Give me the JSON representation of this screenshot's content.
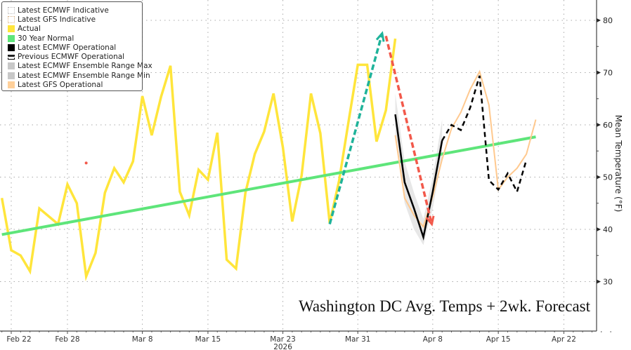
{
  "chart_data": {
    "type": "line",
    "title": "Washington DC Avg. Temps + 2wk. Forecast",
    "ylabel": "Mean Temperature (°F)",
    "xlabel": "2026",
    "ylim": [
      20,
      84
    ],
    "xlim": [
      "2026-02-21",
      "2026-04-27"
    ],
    "yticks": [
      30,
      40,
      50,
      60,
      70,
      80
    ],
    "xticks": [
      {
        "date": "2026-02-22",
        "label": "Feb 22"
      },
      {
        "date": "2026-02-28",
        "label": "Feb 28"
      },
      {
        "date": "2026-03-08",
        "label": "Mar 8"
      },
      {
        "date": "2026-03-15",
        "label": "Mar 15"
      },
      {
        "date": "2026-03-23",
        "label": "Mar 23"
      },
      {
        "date": "2026-03-31",
        "label": "Mar 31"
      },
      {
        "date": "2026-04-08",
        "label": "Apr 8"
      },
      {
        "date": "2026-04-15",
        "label": "Apr 15"
      },
      {
        "date": "2026-04-22",
        "label": "Apr 22"
      }
    ],
    "year_label": "2026",
    "grid": true,
    "legend_position": "top-left",
    "legend": [
      {
        "label": "Latest ECMWF Indicative",
        "color": "#bbbbbb",
        "style": "dotted-box"
      },
      {
        "label": "Latest GFS Indicative",
        "color": "#d9b48a",
        "style": "dotted-box"
      },
      {
        "label": "Actual",
        "color": "#ffe53b",
        "style": "solid"
      },
      {
        "label": "30 Year Normal",
        "color": "#5ee57a",
        "style": "solid"
      },
      {
        "label": "Latest ECMWF Operational",
        "color": "#000000",
        "style": "solid"
      },
      {
        "label": "Previous ECMWF Operational",
        "color": "#000000",
        "style": "dashed-box"
      },
      {
        "label": "Latest ECMWF Ensemble Range Max",
        "color": "#c8c8c8",
        "style": "solid"
      },
      {
        "label": "Latest ECMWF Ensemble Range Min",
        "color": "#c8c8c8",
        "style": "solid"
      },
      {
        "label": "Latest GFS Operational",
        "color": "#ffd09a",
        "style": "solid"
      }
    ],
    "series": [
      {
        "name": "Actual",
        "color": "#ffe53b",
        "start": "2026-02-21",
        "values": [
          46,
          36,
          35,
          32,
          44,
          42.5,
          41,
          48.6,
          45,
          31,
          35.5,
          47,
          51.7,
          49,
          53,
          65.5,
          58,
          65.4,
          71.3,
          47.2,
          42.7,
          51.4,
          49.5,
          58.5,
          34.2,
          32.5,
          47,
          54.4,
          58.7,
          66,
          55.7,
          41.5,
          50.3,
          66,
          58.4,
          41.2,
          49.3,
          60.5,
          71.5,
          71.5,
          56.8,
          62.8,
          76.5
        ]
      },
      {
        "name": "30 Year Normal",
        "color": "#5ee57a",
        "start": "2026-02-21",
        "end": "2026-04-19",
        "values_endpoints": [
          39,
          57.7
        ]
      },
      {
        "name": "Latest ECMWF Ensemble Range Max",
        "color": "#d8d8d8",
        "start": "2026-04-04",
        "values": [
          66,
          53,
          47,
          42,
          50,
          61
        ]
      },
      {
        "name": "Latest ECMWF Ensemble Range Min",
        "color": "#d8d8d8",
        "start": "2026-04-04",
        "values": [
          58,
          45,
          40,
          37,
          44,
          54
        ]
      },
      {
        "name": "Latest GFS Operational",
        "color": "#ffc98f",
        "start": "2026-04-04",
        "values": [
          58,
          46,
          42.7,
          40.5,
          46.3,
          53.4,
          59.3,
          62.4,
          66.8,
          70.2,
          63.8,
          47.6,
          50,
          51.7,
          54.4,
          61
        ]
      },
      {
        "name": "Latest ECMWF Operational",
        "color": "#000000",
        "start": "2026-04-04",
        "values": [
          62,
          49,
          44,
          38.5,
          47.2,
          57
        ]
      },
      {
        "name": "Previous ECMWF Operational",
        "color": "#000000",
        "start": "2026-04-09",
        "dashed": true,
        "values": [
          57,
          60,
          59,
          63.3,
          69.4,
          49.4,
          47.6,
          50.7,
          47.2,
          53.3
        ]
      }
    ],
    "annotations": [
      {
        "type": "arrow",
        "color": "#1fb39a",
        "from": {
          "date": "2026-03-28",
          "value": 41
        },
        "to": {
          "date": "2026-04-02.6",
          "value": 77.5
        }
      },
      {
        "type": "arrow",
        "color": "#f2594b",
        "from": {
          "date": "2026-04-03",
          "value": 77
        },
        "to": {
          "date": "2026-04-07.9",
          "value": 41
        }
      },
      {
        "type": "point",
        "color": "#f2594b",
        "date": "2026-03-02",
        "value": 52.7
      }
    ]
  }
}
